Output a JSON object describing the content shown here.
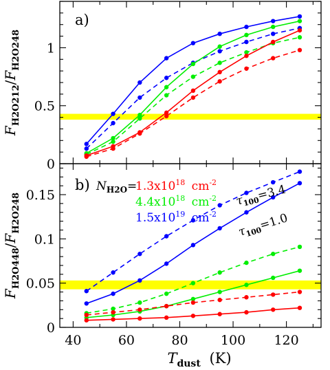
{
  "chart_data": [
    {
      "type": "line",
      "panel_label": "a)",
      "ylabel": {
        "main": "F",
        "sub1": "H2O212",
        "sep": "/",
        "main2": "F",
        "sub2": "H2O248"
      },
      "xlim": [
        35,
        133
      ],
      "ylim": [
        0,
        1.4
      ],
      "xticks": [
        40,
        60,
        80,
        100,
        120
      ],
      "yticks": [
        0,
        0.5,
        1
      ],
      "ytick_labels": [
        "0",
        "0.5",
        "1"
      ],
      "band": {
        "y0": 0.38,
        "y1": 0.43,
        "color": "#ffff00"
      },
      "x": [
        45,
        55,
        65,
        75,
        85,
        95,
        105,
        115,
        125
      ],
      "series": [
        {
          "color": "#0000ff",
          "dash": false,
          "values": [
            0.17,
            0.43,
            0.7,
            0.91,
            1.04,
            1.12,
            1.18,
            1.23,
            1.27
          ]
        },
        {
          "color": "#0000ff",
          "dash": true,
          "values": [
            0.13,
            0.35,
            0.57,
            0.74,
            0.87,
            0.97,
            1.05,
            1.12,
            1.17
          ]
        },
        {
          "color": "#00ee00",
          "dash": false,
          "values": [
            0.09,
            0.22,
            0.42,
            0.66,
            0.86,
            1.01,
            1.11,
            1.18,
            1.23
          ]
        },
        {
          "color": "#00ee00",
          "dash": true,
          "values": [
            0.08,
            0.19,
            0.39,
            0.59,
            0.75,
            0.87,
            0.96,
            1.04,
            1.09
          ]
        },
        {
          "color": "#ff0000",
          "dash": false,
          "values": [
            0.07,
            0.15,
            0.27,
            0.44,
            0.63,
            0.79,
            0.93,
            1.05,
            1.15
          ]
        },
        {
          "color": "#ff0000",
          "dash": true,
          "values": [
            0.06,
            0.13,
            0.26,
            0.41,
            0.57,
            0.71,
            0.82,
            0.91,
            0.98
          ]
        }
      ]
    },
    {
      "type": "line",
      "panel_label": "b)",
      "xlabel": {
        "main": "T",
        "sub": "dust",
        "unit": "(K)"
      },
      "ylabel": {
        "main": "F",
        "sub1": "H2O448",
        "sep": "/",
        "main2": "F",
        "sub2": "H2O248"
      },
      "xlim": [
        35,
        133
      ],
      "ylim": [
        0,
        0.185
      ],
      "xticks": [
        40,
        60,
        80,
        100,
        120
      ],
      "xtick_labels": [
        "40",
        "60",
        "80",
        "100",
        "120"
      ],
      "yticks": [
        0,
        0.05,
        0.1,
        0.15
      ],
      "ytick_labels": [
        "0",
        "0.05",
        "0.1",
        "0.15"
      ],
      "band": {
        "y0": 0.043,
        "y1": 0.053,
        "color": "#ffff00"
      },
      "x": [
        45,
        55,
        65,
        75,
        85,
        95,
        105,
        115,
        125
      ],
      "series": [
        {
          "color": "#0000ff",
          "dash": true,
          "values": [
            0.041,
            0.062,
            0.083,
            0.103,
            0.121,
            0.138,
            0.152,
            0.164,
            0.176
          ]
        },
        {
          "color": "#0000ff",
          "dash": false,
          "values": [
            0.027,
            0.038,
            0.053,
            0.072,
            0.093,
            0.112,
            0.13,
            0.147,
            0.163
          ]
        },
        {
          "color": "#00ee00",
          "dash": true,
          "values": [
            0.016,
            0.021,
            0.028,
            0.038,
            0.05,
            0.062,
            0.073,
            0.083,
            0.091
          ]
        },
        {
          "color": "#00ee00",
          "dash": false,
          "values": [
            0.011,
            0.014,
            0.018,
            0.024,
            0.032,
            0.04,
            0.048,
            0.056,
            0.064
          ]
        },
        {
          "color": "#ff0000",
          "dash": true,
          "values": [
            0.014,
            0.017,
            0.02,
            0.024,
            0.028,
            0.031,
            0.034,
            0.037,
            0.04
          ]
        },
        {
          "color": "#ff0000",
          "dash": false,
          "values": [
            0.008,
            0.009,
            0.01,
            0.011,
            0.013,
            0.015,
            0.017,
            0.02,
            0.022
          ]
        }
      ],
      "legend": {
        "prefix": {
          "main": "N",
          "sub": "H2O",
          "tail": "="
        },
        "entries": [
          {
            "color": "#ff0000",
            "mantissa": "1.3x10",
            "exp": "18",
            "unit": "cm",
            "unit_exp": "-2"
          },
          {
            "color": "#00ee00",
            "mantissa": "4.4x10",
            "exp": "18",
            "unit": "cm",
            "unit_exp": "-2"
          },
          {
            "color": "#0000ff",
            "mantissa": "1.5x10",
            "exp": "19",
            "unit": "cm",
            "unit_exp": "-2"
          }
        ]
      },
      "annotations": [
        {
          "tau": "τ",
          "sub": "100",
          "text": "=3.4"
        },
        {
          "tau": "τ",
          "sub": "100",
          "text": "=1.0"
        }
      ]
    }
  ]
}
